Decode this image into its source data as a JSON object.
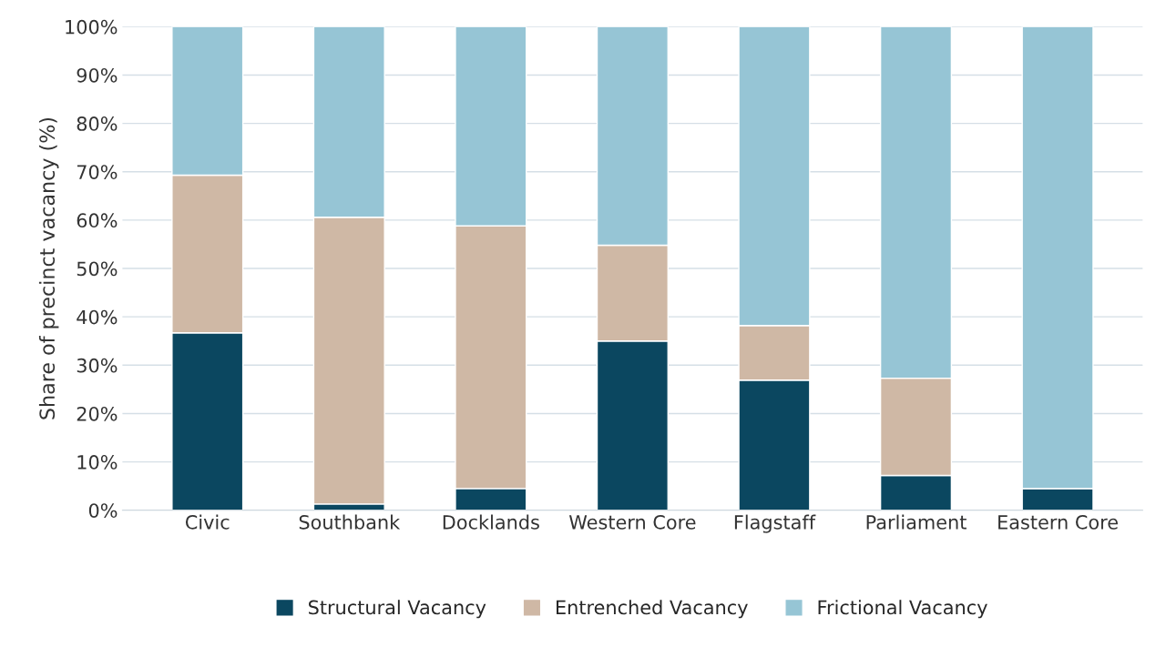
{
  "chart_data": {
    "type": "bar",
    "stacked": true,
    "ylabel": "Share of precinct vacancy (%)",
    "categories": [
      "Civic",
      "Southbank",
      "Docklands",
      "Western Core",
      "Flagstaff",
      "Parliament",
      "Eastern Core"
    ],
    "series": [
      {
        "name": "Structural Vacancy",
        "color": "#0b4760",
        "values": [
          36.7,
          1.3,
          4.5,
          35.0,
          26.9,
          7.2,
          4.5
        ]
      },
      {
        "name": "Entrenched Vacancy",
        "color": "#cfb8a5",
        "values": [
          32.6,
          59.3,
          54.3,
          19.8,
          11.3,
          20.1,
          0
        ]
      },
      {
        "name": "Frictional Vacancy",
        "color": "#96c5d5",
        "values": [
          30.7,
          39.4,
          41.2,
          45.2,
          61.8,
          72.7,
          95.5
        ]
      }
    ],
    "ylim": [
      0,
      100
    ],
    "yticks": [
      {
        "value": 0,
        "label": "0%"
      },
      {
        "value": 10,
        "label": "10%"
      },
      {
        "value": 20,
        "label": "20%"
      },
      {
        "value": 30,
        "label": "30%"
      },
      {
        "value": 40,
        "label": "40%"
      },
      {
        "value": 50,
        "label": "50%"
      },
      {
        "value": 60,
        "label": "60%"
      },
      {
        "value": 70,
        "label": "70%"
      },
      {
        "value": 80,
        "label": "80%"
      },
      {
        "value": 90,
        "label": "90%"
      },
      {
        "value": 100,
        "label": "100%"
      }
    ],
    "grid": "y",
    "legend": "bottom"
  }
}
